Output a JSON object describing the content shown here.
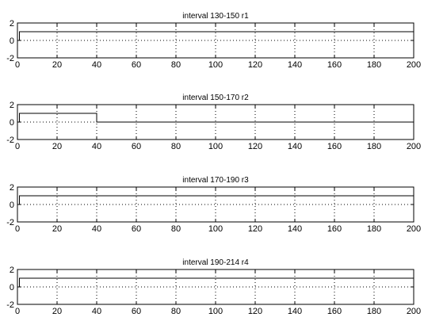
{
  "figure": {
    "background": "#ffffff",
    "axes_color": "#000000",
    "line_color": "#000000"
  },
  "chart_data": [
    {
      "type": "line",
      "title": "interval 130-150    r1",
      "xlim": [
        0,
        200
      ],
      "ylim": [
        -2,
        2
      ],
      "xticks": [
        0,
        20,
        40,
        60,
        80,
        100,
        120,
        140,
        160,
        180,
        200
      ],
      "yticks": [
        -2,
        0,
        2
      ],
      "grid": true,
      "series": [
        {
          "x": [
            0,
            1,
            1,
            200
          ],
          "y": [
            0,
            0,
            1,
            1
          ]
        }
      ]
    },
    {
      "type": "line",
      "title": "interval 150-170    r2",
      "xlim": [
        0,
        200
      ],
      "ylim": [
        -2,
        2
      ],
      "xticks": [
        0,
        20,
        40,
        60,
        80,
        100,
        120,
        140,
        160,
        180,
        200
      ],
      "yticks": [
        -2,
        0,
        2
      ],
      "grid": true,
      "series": [
        {
          "x": [
            0,
            1,
            1,
            40,
            40,
            200
          ],
          "y": [
            0,
            0,
            1,
            1,
            0,
            0
          ]
        }
      ]
    },
    {
      "type": "line",
      "title": "interval 170-190    r3",
      "xlim": [
        0,
        200
      ],
      "ylim": [
        -2,
        2
      ],
      "xticks": [
        0,
        20,
        40,
        60,
        80,
        100,
        120,
        140,
        160,
        180,
        200
      ],
      "yticks": [
        -2,
        0,
        2
      ],
      "grid": true,
      "series": [
        {
          "x": [
            0,
            1,
            1,
            200
          ],
          "y": [
            0,
            0,
            1,
            1
          ]
        }
      ]
    },
    {
      "type": "line",
      "title": "interval 190-214    r4",
      "xlim": [
        0,
        200
      ],
      "ylim": [
        -2,
        2
      ],
      "xticks": [
        0,
        20,
        40,
        60,
        80,
        100,
        120,
        140,
        160,
        180,
        200
      ],
      "yticks": [
        -2,
        0,
        2
      ],
      "grid": true,
      "series": [
        {
          "x": [
            0,
            1,
            1,
            200
          ],
          "y": [
            0,
            0,
            1,
            1
          ]
        }
      ]
    }
  ]
}
